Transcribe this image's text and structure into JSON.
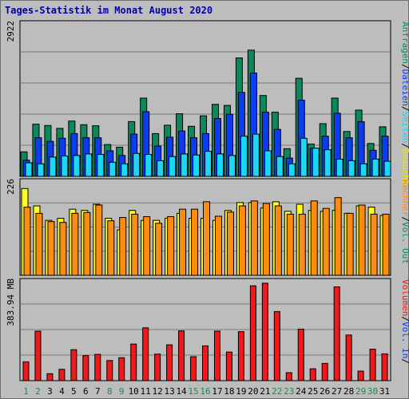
{
  "title": "Tages-Statistik im Monat August 2020",
  "colors": {
    "anfragen": "#0a8a5a",
    "dateien": "#0a3cf0",
    "seiten": "#18d8f8",
    "besuche": "#ffff20",
    "rechner": "#ff8c10",
    "volumen": "#f01818",
    "weekday_label": "#000000",
    "weekend_label": "#1e8a4a",
    "slash": "#000000"
  },
  "panel_labels": {
    "top": [
      {
        "text": "Anfragen",
        "color": "#0a8a5a"
      },
      {
        "text": "/",
        "color": "#000000"
      },
      {
        "text": "Dateien",
        "color": "#0a3cf0"
      },
      {
        "text": "/",
        "color": "#000000"
      },
      {
        "text": "Seiten",
        "color": "#18d8f8"
      },
      {
        "text": "/",
        "color": "#000000"
      },
      {
        "text": "Besuche",
        "color": "#e8e800"
      }
    ],
    "middle": [
      {
        "text": "Rechner",
        "color": "#ff8c10"
      },
      {
        "text": "/",
        "color": "#000000"
      },
      {
        "text": "Vol. Out",
        "color": "#0a8a5a"
      }
    ],
    "bottom": [
      {
        "text": "Volumen",
        "color": "#f01818"
      },
      {
        "text": "/",
        "color": "#000000"
      },
      {
        "text": "Vol. In",
        "color": "#0a3cf0"
      },
      {
        "text": "/",
        "color": "#000000"
      }
    ]
  },
  "chart_data": [
    {
      "type": "bar",
      "panel": "top",
      "ymax_label": "2922",
      "ylim": [
        0,
        2922
      ],
      "categories": [
        "1",
        "2",
        "3",
        "4",
        "5",
        "6",
        "7",
        "8",
        "9",
        "10",
        "11",
        "12",
        "13",
        "14",
        "15",
        "16",
        "17",
        "18",
        "19",
        "20",
        "21",
        "22",
        "23",
        "24",
        "25",
        "26",
        "27",
        "28",
        "29",
        "30",
        "31"
      ],
      "series": [
        {
          "name": "Anfragen",
          "values": [
            470,
            1000,
            975,
            920,
            1060,
            990,
            970,
            610,
            560,
            1050,
            1500,
            820,
            980,
            1200,
            960,
            1160,
            1380,
            1360,
            2270,
            2420,
            1550,
            1230,
            530,
            1880,
            620,
            1010,
            1500,
            860,
            1270,
            630,
            950
          ]
        },
        {
          "name": "Dateien",
          "values": [
            310,
            740,
            670,
            730,
            820,
            740,
            740,
            490,
            400,
            810,
            1240,
            580,
            750,
            870,
            740,
            820,
            1110,
            1190,
            1610,
            1980,
            1230,
            900,
            350,
            1460,
            540,
            770,
            1210,
            740,
            1050,
            500,
            770
          ]
        },
        {
          "name": "Seiten",
          "values": [
            260,
            240,
            370,
            390,
            400,
            430,
            420,
            270,
            240,
            440,
            420,
            300,
            380,
            430,
            410,
            480,
            430,
            400,
            770,
            810,
            490,
            380,
            240,
            730,
            540,
            510,
            330,
            300,
            240,
            330,
            290
          ]
        }
      ]
    },
    {
      "type": "bar",
      "panel": "middle",
      "ymax_label": "226",
      "ylim": [
        0,
        226
      ],
      "categories": [
        "1",
        "2",
        "3",
        "4",
        "5",
        "6",
        "7",
        "8",
        "9",
        "10",
        "11",
        "12",
        "13",
        "14",
        "15",
        "16",
        "17",
        "18",
        "19",
        "20",
        "21",
        "22",
        "23",
        "24",
        "25",
        "26",
        "27",
        "28",
        "29",
        "30",
        "31"
      ],
      "series": [
        {
          "name": "Besuche",
          "values": [
            210,
            168,
            133,
            138,
            160,
            157,
            172,
            138,
            110,
            157,
            133,
            133,
            138,
            150,
            138,
            138,
            133,
            157,
            176,
            176,
            163,
            178,
            155,
            172,
            157,
            155,
            157,
            150,
            168,
            165,
            145
          ]
        },
        {
          "name": "Rechner",
          "values": [
            165,
            150,
            130,
            128,
            150,
            152,
            170,
            132,
            140,
            148,
            142,
            126,
            142,
            160,
            160,
            178,
            143,
            153,
            168,
            180,
            174,
            168,
            148,
            148,
            180,
            162,
            188,
            150,
            170,
            148,
            148
          ]
        }
      ]
    },
    {
      "type": "bar",
      "panel": "bottom",
      "ymax_label": "383.94 MB",
      "ylim": [
        0,
        383.94
      ],
      "categories": [
        "1",
        "2",
        "3",
        "4",
        "5",
        "6",
        "7",
        "8",
        "9",
        "10",
        "11",
        "12",
        "13",
        "14",
        "15",
        "16",
        "17",
        "18",
        "19",
        "20",
        "21",
        "22",
        "23",
        "24",
        "25",
        "26",
        "27",
        "28",
        "29",
        "30",
        "31"
      ],
      "series": [
        {
          "name": "Volumen",
          "values": [
            73,
            192,
            27,
            44,
            120,
            97,
            102,
            78,
            89,
            142,
            205,
            103,
            139,
            193,
            93,
            135,
            192,
            111,
            190,
            368,
            378,
            268,
            31,
            200,
            46,
            67,
            364,
            177,
            37,
            122,
            104
          ]
        }
      ]
    }
  ],
  "x_axis": {
    "labels": [
      "1",
      "2",
      "3",
      "4",
      "5",
      "6",
      "7",
      "8",
      "9",
      "10",
      "11",
      "12",
      "13",
      "14",
      "15",
      "16",
      "17",
      "18",
      "19",
      "20",
      "21",
      "22",
      "23",
      "24",
      "25",
      "26",
      "27",
      "28",
      "29",
      "30",
      "31"
    ],
    "weekend": [
      "1",
      "2",
      "8",
      "9",
      "15",
      "16",
      "22",
      "23",
      "29",
      "30"
    ]
  }
}
